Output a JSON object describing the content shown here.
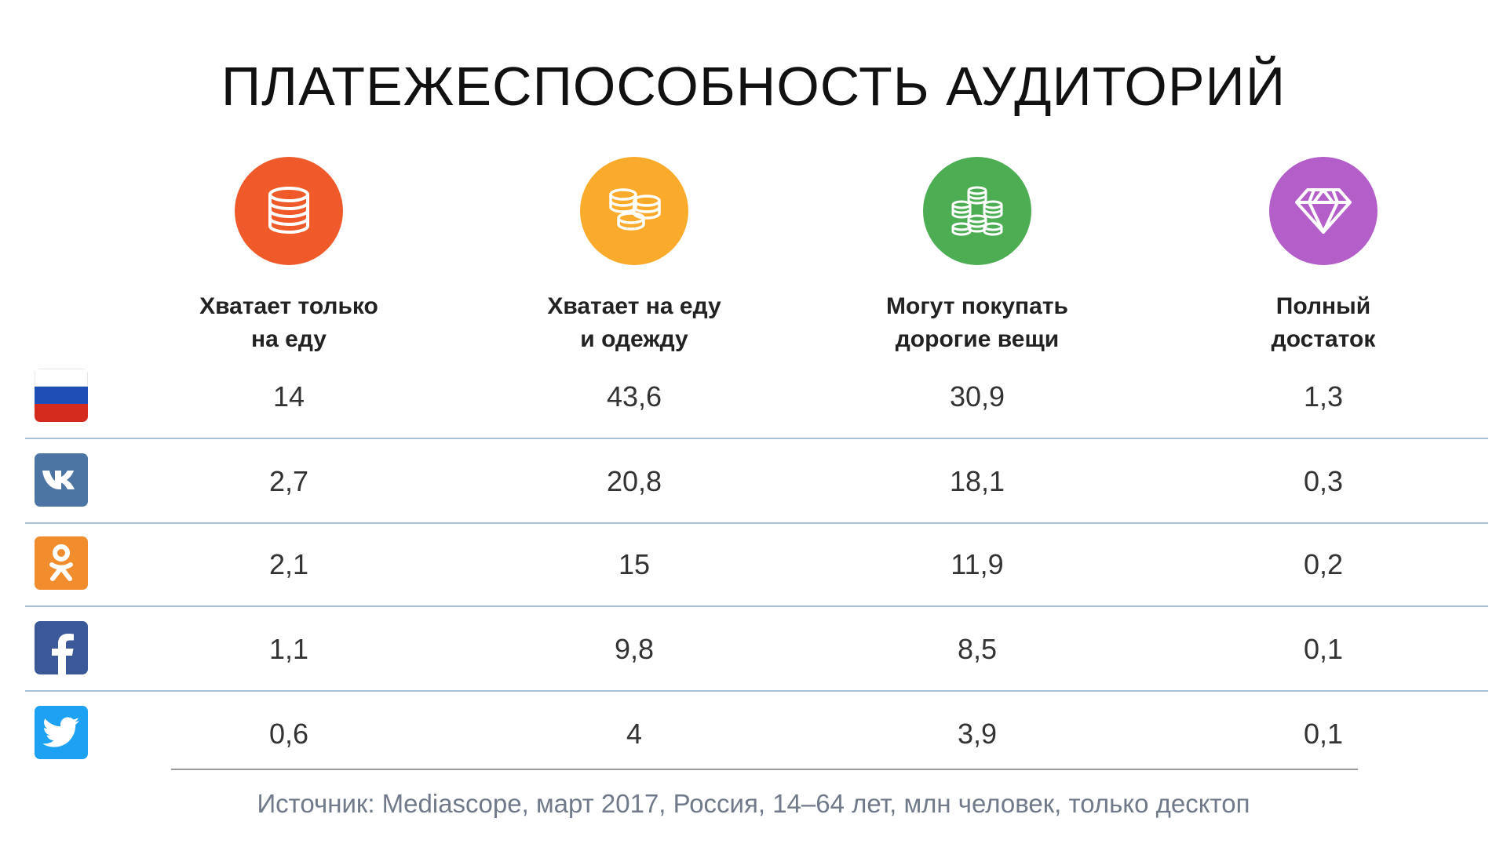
{
  "title": "ПЛАТЕЖЕСПОСОБНОСТЬ АУДИТОРИЙ",
  "footnote": "Источник: Mediascope, март 2017, Россия, 14–64 лет, млн человек, только десктоп",
  "chart_data": {
    "type": "table",
    "columns": [
      {
        "label": "Хватает только\nна еду",
        "icon": "coin-stack-icon",
        "color": "#f05a2b"
      },
      {
        "label": "Хватает на еду\nи одежду",
        "icon": "coin-stacks-icon",
        "color": "#fbab2c"
      },
      {
        "label": "Могут покупать\nдорогие вещи",
        "icon": "money-stacks-icon",
        "color": "#4cad53"
      },
      {
        "label": "Полный\nдостаток",
        "icon": "diamond-icon",
        "color": "#b35ec9"
      }
    ],
    "rows": [
      {
        "icon": "russia-flag-icon",
        "values": [
          "14",
          "43,6",
          "30,9",
          "1,3"
        ]
      },
      {
        "icon": "vk-icon",
        "color": "#4c75a3",
        "values": [
          "2,7",
          "20,8",
          "18,1",
          "0,3"
        ]
      },
      {
        "icon": "odnoklassniki-icon",
        "color": "#f18d2c",
        "values": [
          "2,1",
          "15",
          "11,9",
          "0,2"
        ]
      },
      {
        "icon": "facebook-icon",
        "color": "#3b5998",
        "values": [
          "1,1",
          "9,8",
          "8,5",
          "0,1"
        ]
      },
      {
        "icon": "twitter-icon",
        "color": "#1da1f2",
        "values": [
          "0,6",
          "4",
          "3,9",
          "0,1"
        ]
      }
    ]
  }
}
